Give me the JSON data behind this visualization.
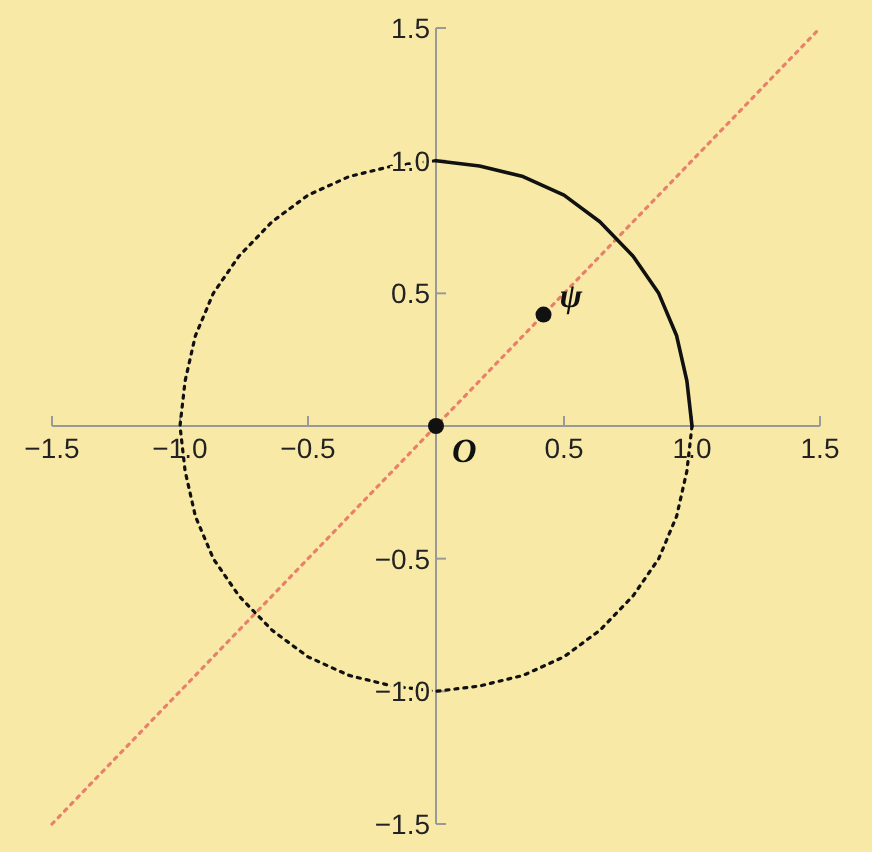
{
  "chart_data": {
    "type": "line",
    "xlim": [
      -1.5,
      1.5
    ],
    "ylim": [
      -1.5,
      1.5
    ],
    "xticks": [
      {
        "value": -1.5,
        "label": "−1.5"
      },
      {
        "value": -1,
        "label": "−1.0"
      },
      {
        "value": -0.5,
        "label": "−0.5"
      },
      {
        "value": 0.5,
        "label": "0.5"
      },
      {
        "value": 1,
        "label": "1.0"
      },
      {
        "value": 1.5,
        "label": "1.5"
      }
    ],
    "yticks": [
      {
        "value": -1.5,
        "label": "−1.5"
      },
      {
        "value": -1,
        "label": "−1.0"
      },
      {
        "value": -0.5,
        "label": "−0.5"
      },
      {
        "value": 0.5,
        "label": "0.5"
      },
      {
        "value": 1,
        "label": "1.0"
      },
      {
        "value": 1.5,
        "label": "1.5"
      }
    ],
    "grid": false,
    "series": [
      {
        "color": "#e8806a",
        "line_style": "dotted",
        "x": [
          -1.5,
          1.5
        ],
        "values": [
          -1.5,
          1.5
        ]
      },
      {
        "color": "#111111",
        "line_style": "dotted",
        "x": [
          0,
          -0.17,
          -0.34,
          -0.5,
          -0.64,
          -0.77,
          -0.87,
          -0.94,
          -0.98,
          -1,
          -0.98,
          -0.94,
          -0.87,
          -0.77,
          -0.64,
          -0.5,
          -0.34,
          -0.17,
          0,
          0.17,
          0.34,
          0.5,
          0.64,
          0.77,
          0.87,
          0.94,
          0.98,
          1
        ],
        "values": [
          1,
          0.98,
          0.94,
          0.87,
          0.77,
          0.64,
          0.5,
          0.34,
          0.17,
          0,
          -0.17,
          -0.34,
          -0.5,
          -0.64,
          -0.77,
          -0.87,
          -0.94,
          -0.98,
          -1,
          -0.98,
          -0.94,
          -0.87,
          -0.77,
          -0.64,
          -0.5,
          -0.34,
          -0.17,
          0
        ]
      },
      {
        "color": "#111111",
        "line_style": "solid",
        "x": [
          1,
          0.98,
          0.94,
          0.87,
          0.77,
          0.64,
          0.5,
          0.34,
          0.17,
          0
        ],
        "values": [
          0,
          0.17,
          0.34,
          0.5,
          0.64,
          0.77,
          0.87,
          0.94,
          0.98,
          1
        ]
      },
      {
        "type": "scatter",
        "color": "#111111",
        "marker": "circle",
        "x": [
          0,
          0.42
        ],
        "values": [
          0,
          0.42
        ]
      }
    ],
    "annotations": [
      {
        "text": "O",
        "x": 0,
        "y": 0
      },
      {
        "text": "ψ",
        "x": 0.42,
        "y": 0.42
      }
    ]
  }
}
